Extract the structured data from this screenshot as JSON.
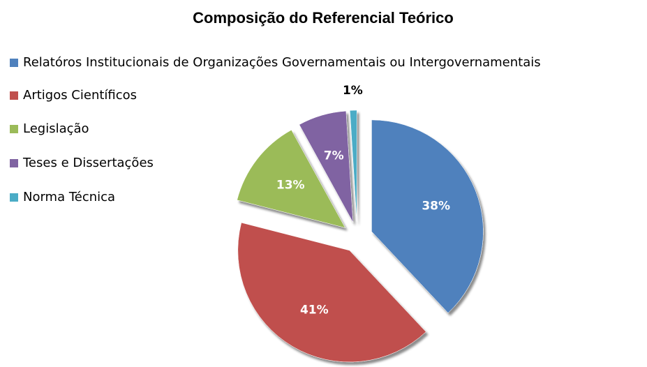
{
  "chart_data": {
    "type": "pie",
    "title": "Composição do Referencial Teórico",
    "categories": [
      "Relatóros Institucionais de Organizações Governamentais ou Intergovernamentais",
      "Artigos Científicos",
      "Legislação",
      "Teses e Dissertações",
      "Norma Técnica"
    ],
    "values": [
      38,
      41,
      13,
      7,
      1
    ],
    "value_labels": [
      "38%",
      "41%",
      "13%",
      "7%",
      "1%"
    ],
    "colors": [
      "#4f81bd",
      "#c0504d",
      "#9bbb59",
      "#8064a2",
      "#4bacc6"
    ],
    "legend": "left"
  }
}
